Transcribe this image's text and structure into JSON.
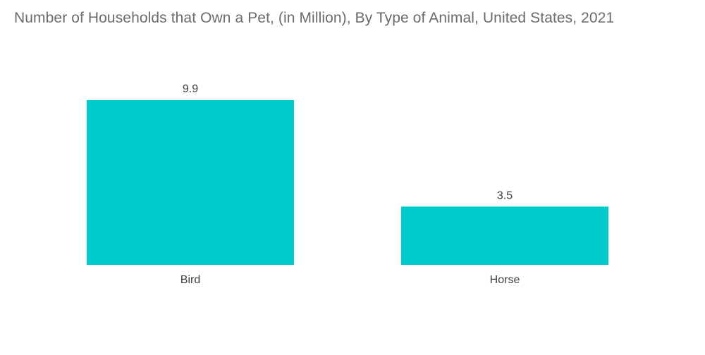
{
  "chart_data": {
    "type": "bar",
    "title": "Number of Households that Own a Pet, (in Million), By Type of Animal, United States, 2021",
    "categories": [
      "Bird",
      "Horse"
    ],
    "values": [
      9.9,
      3.5
    ],
    "value_labels": [
      "9.9",
      "3.5"
    ],
    "xlabel": "",
    "ylabel": "",
    "ylim": [
      0,
      9.9
    ],
    "grid": false,
    "legend": "none",
    "bar_color": "#00cccc"
  }
}
